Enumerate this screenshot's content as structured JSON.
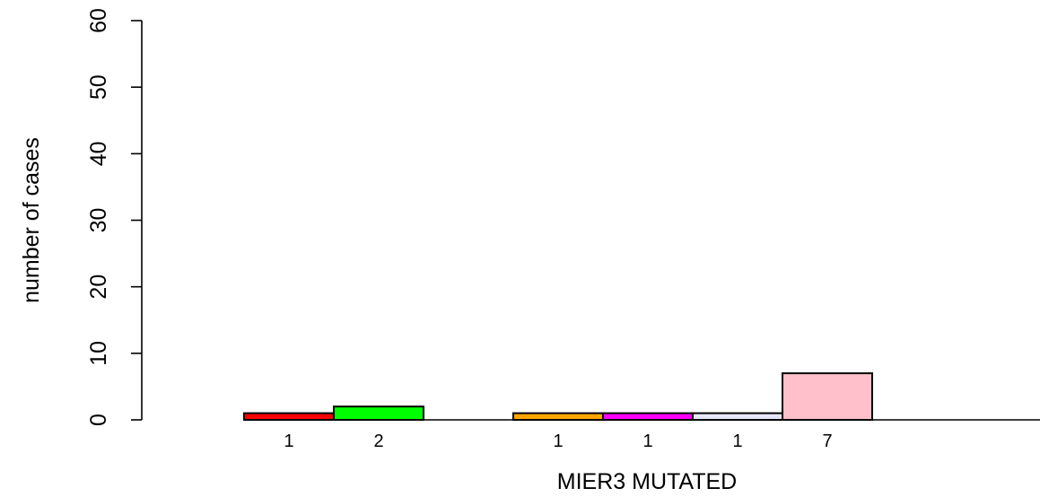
{
  "chart_data": {
    "type": "bar",
    "title": "",
    "xlabel": "MIER3 MUTATED",
    "ylabel": "number of cases",
    "ylim": [
      0,
      60
    ],
    "yticks": [
      0,
      10,
      20,
      30,
      40,
      50,
      60
    ],
    "grid": false,
    "legend": "none",
    "bars": [
      {
        "value": 1,
        "label": "1",
        "color": "#ff0000"
      },
      {
        "value": 2,
        "label": "2",
        "color": "#00ff00"
      },
      {
        "value": 0,
        "label": "",
        "color": "#0000ff"
      },
      {
        "value": 1,
        "label": "1",
        "color": "#ffa500"
      },
      {
        "value": 1,
        "label": "1",
        "color": "#ff00ff"
      },
      {
        "value": 1,
        "label": "1",
        "color": "#e6e6fa"
      },
      {
        "value": 7,
        "label": "7",
        "color": "#ffc0cb"
      }
    ]
  }
}
